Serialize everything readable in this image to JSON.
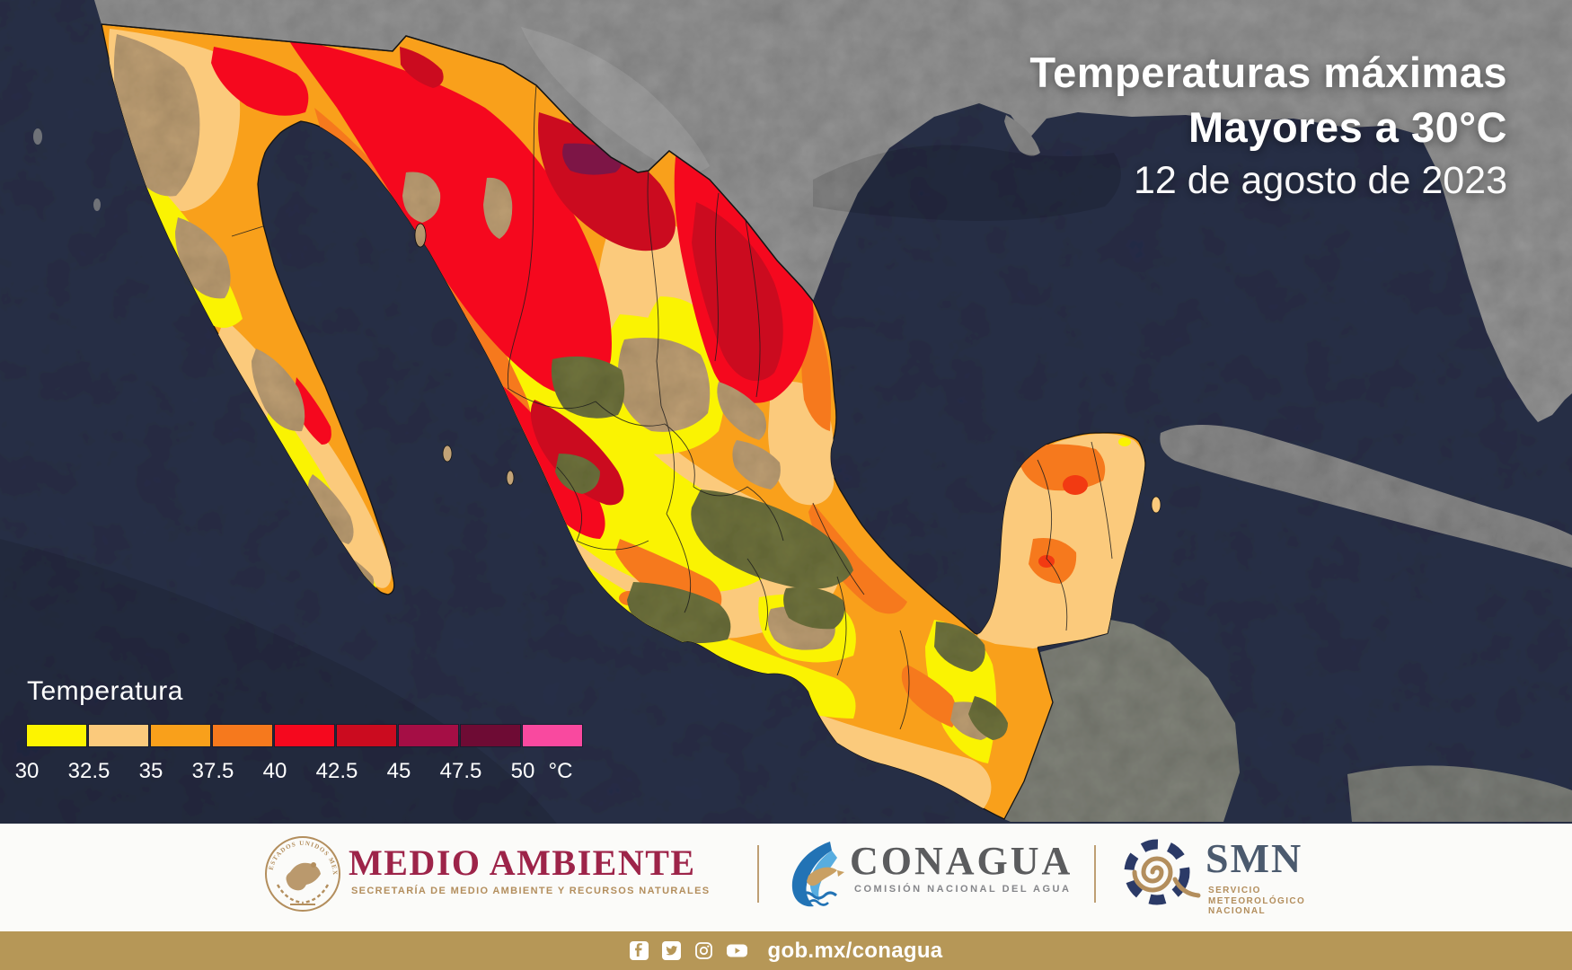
{
  "title": {
    "line1": "Temperaturas máximas",
    "line2": "Mayores a 30°C",
    "date_line": "12 de agosto de 2023"
  },
  "legend": {
    "heading": "Temperatura",
    "unit": "°C",
    "stops": [
      {
        "label": "30",
        "color": "#FDF400"
      },
      {
        "label": "32.5",
        "color": "#FBCA7C"
      },
      {
        "label": "35",
        "color": "#F9A01B"
      },
      {
        "label": "37.5",
        "color": "#F6791D"
      },
      {
        "label": "40",
        "color": "#F5081E"
      },
      {
        "label": "42.5",
        "color": "#CB0B1F"
      },
      {
        "label": "45",
        "color": "#A50E45"
      },
      {
        "label": "47.5",
        "color": "#6E0B34"
      },
      {
        "label": "50",
        "color": "#F9499F"
      }
    ]
  },
  "map": {
    "ocean_color": "#2B3148",
    "us_land_color": "#979797",
    "terrain_tan": "#C2A377",
    "terrain_olive": "#72763F"
  },
  "footer": {
    "medio_ambiente": {
      "name": "MEDIO AMBIENTE",
      "subtitle": "SECRETARÍA DE MEDIO AMBIENTE Y RECURSOS NATURALES",
      "seal_text": "ESTADOS UNIDOS MEXICANOS"
    },
    "conagua": {
      "name": "CONAGUA",
      "subtitle": "COMISIÓN NACIONAL DEL AGUA"
    },
    "smn": {
      "name": "SMN",
      "subtitle_line1": "SERVICIO",
      "subtitle_line2": "METEOROLÓGICO",
      "subtitle_line3": "NACIONAL"
    }
  },
  "bottom_bar": {
    "url": "gob.mx/conagua",
    "background": "#B69757",
    "social_icons": [
      "facebook-icon",
      "twitter-icon",
      "instagram-icon",
      "youtube-icon"
    ]
  }
}
